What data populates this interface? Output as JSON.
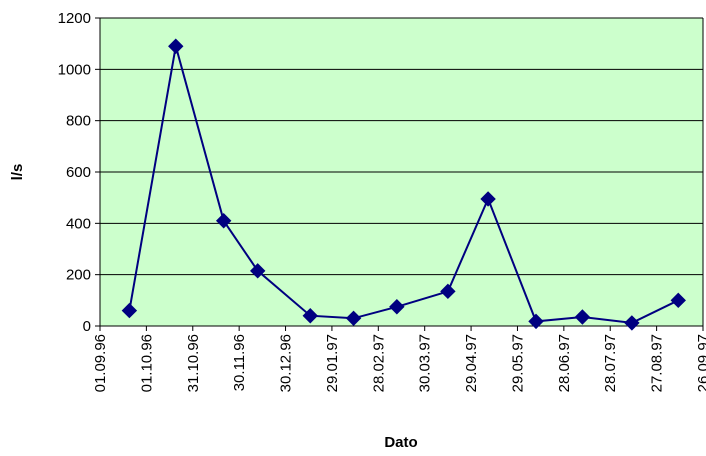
{
  "chart_data": {
    "type": "line",
    "title": "",
    "xlabel": "Dato",
    "ylabel": "l/s",
    "ylim": [
      0,
      1200
    ],
    "yticks": [
      0,
      200,
      400,
      600,
      800,
      1000,
      1200
    ],
    "x_tick_labels": [
      "01.09.96",
      "01.10.96",
      "31.10.96",
      "30.11.96",
      "30.12.96",
      "29.01.97",
      "28.02.97",
      "30.03.97",
      "29.04.97",
      "29.05.97",
      "28.06.97",
      "28.07.97",
      "27.08.97",
      "26.09.97"
    ],
    "xlim": [
      "1996-09-01",
      "1997-09-26"
    ],
    "grid": "horizontal",
    "legend": "none",
    "series": [
      {
        "marker": "diamond",
        "color": "#000080",
        "points": [
          {
            "x": "1996-09-20",
            "y": 60
          },
          {
            "x": "1996-10-20",
            "y": 1090
          },
          {
            "x": "1996-11-20",
            "y": 410
          },
          {
            "x": "1996-12-12",
            "y": 215
          },
          {
            "x": "1997-01-15",
            "y": 40
          },
          {
            "x": "1997-02-12",
            "y": 30
          },
          {
            "x": "1997-03-12",
            "y": 75
          },
          {
            "x": "1997-04-14",
            "y": 135
          },
          {
            "x": "1997-05-10",
            "y": 495
          },
          {
            "x": "1997-06-10",
            "y": 18
          },
          {
            "x": "1997-07-10",
            "y": 35
          },
          {
            "x": "1997-08-11",
            "y": 12
          },
          {
            "x": "1997-09-10",
            "y": 100
          }
        ]
      }
    ]
  },
  "colors": {
    "plot_background": "#ccffcc",
    "series_line": "#000080",
    "gridline": "#000000"
  }
}
